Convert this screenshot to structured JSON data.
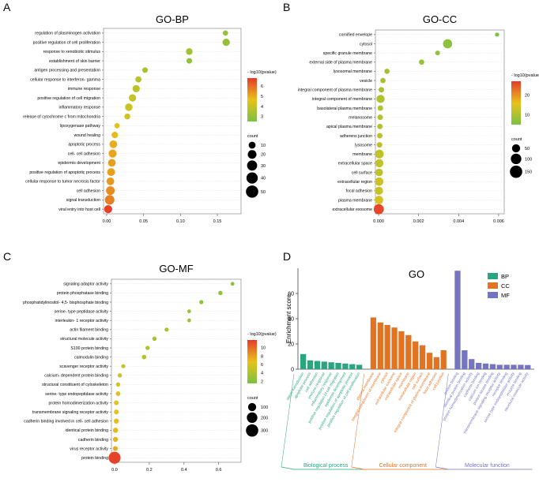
{
  "colors": {
    "low": "#7ac143",
    "mid": "#e8c21a",
    "high": "#e63a2a",
    "bp": "#2aa57f",
    "cc": "#e27322",
    "mf": "#7474c0"
  },
  "chart_data": [
    {
      "panel": "A",
      "title": "GO-BP",
      "type": "scatter",
      "xlim": [
        0,
        0.18
      ],
      "xticks": [
        "0.00",
        "0.05",
        "0.10",
        "0.15"
      ],
      "terms": [
        "regulation of plasminogen activation",
        "positive regulation of cell proliferation",
        "response to xenobiotic stimulus",
        "establishment of skin barrier",
        "antigen processing and presentation",
        "cellular response to interferon- gamma",
        "immune response",
        "positive regulation of cell migration",
        "inflammatory response",
        "release of cytochrome c from mitochondria",
        "lipoxygenase pathway",
        "wound healing",
        "apoptotic process",
        "cell- cell adhesion",
        "epidermis development",
        "positive regulation of apoptotic process",
        "cellular response to tumor necrosis factor",
        "cell adhesion",
        "signal transduction",
        "viral entry into host cell"
      ],
      "x": [
        0.161,
        0.162,
        0.112,
        0.112,
        0.052,
        0.043,
        0.04,
        0.035,
        0.03,
        0.028,
        0.014,
        0.011,
        0.009,
        0.008,
        0.007,
        0.006,
        0.005,
        0.005,
        0.004,
        0.002
      ],
      "count": [
        4,
        12,
        9,
        5,
        5,
        7,
        12,
        12,
        13,
        6,
        4,
        8,
        14,
        16,
        14,
        15,
        14,
        20,
        26,
        16
      ],
      "logp": [
        3,
        3,
        3.2,
        3,
        3.4,
        3.7,
        3.8,
        4,
        4.1,
        4.2,
        4.6,
        4.8,
        5,
        5.1,
        5.2,
        5.2,
        5.3,
        5.5,
        5.7,
        6.7
      ],
      "legend": {
        "color_title": "- log10(pvalue)",
        "color_ticks": [
          "6",
          "5",
          "4",
          "3"
        ],
        "color_range": [
          2.5,
          6.8
        ],
        "size_title": "count",
        "size_labels": [
          "10",
          "20",
          "30",
          "40",
          "50"
        ],
        "size_values": [
          10,
          20,
          30,
          40,
          50
        ]
      }
    },
    {
      "panel": "B",
      "title": "GO-CC",
      "type": "scatter",
      "xlim": [
        0,
        0.0062
      ],
      "xticks": [
        "0.000",
        "0.002",
        "0.004",
        "0.006"
      ],
      "terms": [
        "cornified envelope",
        "cytosol",
        "specific granule membrane",
        "external side of plasma membrane",
        "lysosomal membrane",
        "vesicle",
        "integral component of plasma membrane",
        "integral component of membrane",
        "basolateral plasma membrane",
        "melanosome",
        "apical plasma membrane",
        "adherens junction",
        "lysosome",
        "membrane",
        "extracellular space",
        "cell surface",
        "extracellular region",
        "focal adhesion",
        "plasma membrane",
        "extracellular exosome"
      ],
      "x": [
        0.00592,
        0.00345,
        0.00295,
        0.00215,
        0.00042,
        0.00022,
        0.00014,
        0.0001,
        9e-05,
        8e-05,
        7e-05,
        6e-05,
        5e-05,
        4e-05,
        4e-05,
        3e-05,
        3e-05,
        2e-05,
        2e-05,
        1e-05
      ],
      "count": [
        4,
        70,
        8,
        12,
        12,
        12,
        14,
        50,
        14,
        14,
        14,
        14,
        14,
        60,
        50,
        40,
        55,
        50,
        55,
        90
      ],
      "logp": [
        5,
        7,
        7.5,
        8,
        9,
        9.5,
        10,
        10.5,
        10.5,
        11,
        11,
        11.5,
        11.5,
        12,
        12,
        12,
        13,
        13,
        14,
        26
      ],
      "legend": {
        "color_title": "- log10(pvalue)",
        "color_ticks": [
          "20",
          "10"
        ],
        "color_range": [
          5,
          27
        ],
        "size_title": "count",
        "size_labels": [
          "50",
          "100",
          "150"
        ],
        "size_values": [
          50,
          100,
          150
        ]
      }
    },
    {
      "panel": "C",
      "title": "GO-MF",
      "type": "scatter",
      "xlim": [
        0,
        0.72
      ],
      "xticks": [
        "0.0",
        "0.2",
        "0.4",
        "0.6"
      ],
      "terms": [
        "signaling adaptor activity",
        "protein phosphatase binding",
        "phosphatidylinositol- 4,5- bisphosphate binding",
        "serine- type peptidase activity",
        "interleukin- 1 receptor activity",
        "actin filament binding",
        "structural molecule activity",
        "S100 protein binding",
        "calmodulin binding",
        "scavenger receptor activity",
        "calcium- dependent protein binding",
        "structural constituent of cytoskeleton",
        "serine- type endopeptidase activity",
        "protein homodimerization activity",
        "transmembrane signaling receptor activity",
        "cadherin binding involved in cell- cell adhesion",
        "identical protein binding",
        "cadherin binding",
        "virus receptor activity",
        "protein binding"
      ],
      "x": [
        0.68,
        0.61,
        0.5,
        0.43,
        0.43,
        0.3,
        0.23,
        0.19,
        0.17,
        0.05,
        0.03,
        0.02,
        0.02,
        0.01,
        0.01,
        0.01,
        0.005,
        0.005,
        0.004,
        0.0
      ],
      "count": [
        5,
        10,
        8,
        5,
        5,
        8,
        10,
        8,
        12,
        8,
        10,
        10,
        14,
        16,
        16,
        20,
        22,
        20,
        18,
        280
      ],
      "logp": [
        2.2,
        2.5,
        2.6,
        3,
        3,
        3.5,
        3.8,
        4,
        4.2,
        5,
        5.4,
        5.8,
        6,
        6.4,
        6.6,
        6.8,
        7,
        7.2,
        7.5,
        11.5
      ],
      "legend": {
        "color_title": "- log10(pvalue)",
        "color_ticks": [
          "10",
          "8",
          "6",
          "4",
          "2"
        ],
        "color_range": [
          1.5,
          11.8
        ],
        "size_title": "count",
        "size_labels": [
          "100",
          "200",
          "300"
        ],
        "size_values": [
          100,
          200,
          300
        ]
      }
    },
    {
      "panel": "D",
      "title": "GO",
      "type": "bar",
      "ylabel": "Enrichment score",
      "ylim": [
        0,
        80
      ],
      "yticks": [
        "0",
        "20",
        "40",
        "60"
      ],
      "legend": [
        "BP",
        "CC",
        "MF"
      ],
      "groups": [
        {
          "name": "Biological process",
          "key": "bp",
          "categories": [
            "signal transduction",
            "apoptotic process",
            "cell adhesion",
            "immune response",
            "inflammatory response",
            "positive regulation of cell migration",
            "epidermis development",
            "positive regulation of apoptotic process",
            "positive regulation of cell proliferation"
          ],
          "values": [
            12,
            7,
            6.5,
            6,
            5.5,
            5,
            4.5,
            4,
            3.5
          ]
        },
        {
          "name": "Cellular component",
          "key": "cc",
          "categories": [
            "plasma membrane",
            "integral component of membrane",
            "cytosol",
            "extracellular exosome",
            "extracellular space",
            "membrane",
            "extracellular region",
            "cell surface",
            "integral component of plasma membrane",
            "focal adhesion",
            "cell junction"
          ],
          "values": [
            41,
            37,
            35,
            33,
            30,
            27,
            22,
            19,
            13,
            9.5,
            15
          ]
        },
        {
          "name": "Molecular function",
          "key": "mf",
          "categories": [
            "protein binding",
            "identical protein binding",
            "protein homodimerization activity",
            "cadherin binding",
            "calcium ion binding",
            "protein kinase binding",
            "transmembrane signaling receptor activity",
            "receptor binding",
            "serine-type endopeptidase activity",
            "enzyme binding",
            "structural molecule activity"
          ],
          "values": [
            78,
            15,
            8,
            5,
            4.5,
            4,
            3.5,
            3.5,
            3.5,
            3.5,
            3.3
          ]
        }
      ]
    }
  ]
}
